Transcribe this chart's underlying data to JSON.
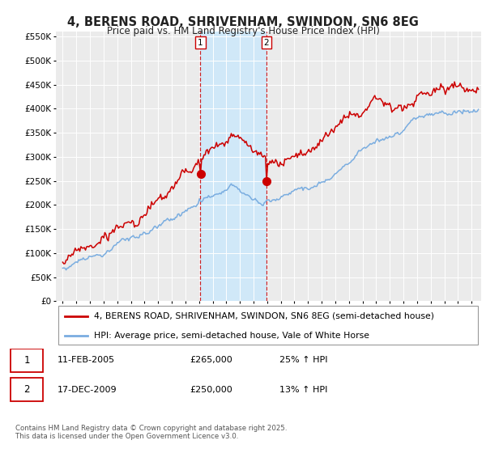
{
  "title": "4, BERENS ROAD, SHRIVENHAM, SWINDON, SN6 8EG",
  "subtitle": "Price paid vs. HM Land Registry's House Price Index (HPI)",
  "red_label": "4, BERENS ROAD, SHRIVENHAM, SWINDON, SN6 8EG (semi-detached house)",
  "blue_label": "HPI: Average price, semi-detached house, Vale of White Horse",
  "transaction1_date": "11-FEB-2005",
  "transaction1_price": 265000,
  "transaction1_hpi": "25% ↑ HPI",
  "transaction2_date": "17-DEC-2009",
  "transaction2_price": 250000,
  "transaction2_hpi": "13% ↑ HPI",
  "footnote": "Contains HM Land Registry data © Crown copyright and database right 2025.\nThis data is licensed under the Open Government Licence v3.0.",
  "vline1_x": 2005.1,
  "vline2_x": 2009.95,
  "ylim_min": 0,
  "ylim_max": 560000,
  "xlim_min": 1994.5,
  "xlim_max": 2025.7,
  "red_color": "#cc0000",
  "blue_color": "#7aade0",
  "vline_color": "#cc0000",
  "background_color": "#ffffff",
  "plot_bg_color": "#ebebeb",
  "grid_color": "#ffffff",
  "shade_color": "#d0e8f8"
}
